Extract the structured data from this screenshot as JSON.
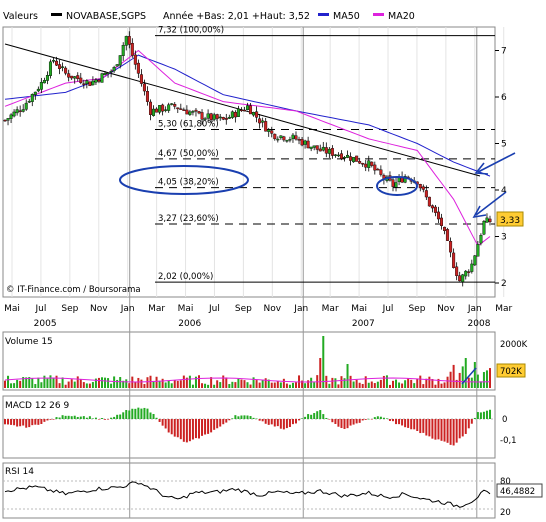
{
  "header": {
    "prefix": "Valeurs",
    "symbol": "NOVABASE,SGPS",
    "range_text": "Année +Bas: 2,01 +Haut: 3,52",
    "ma50_label": "MA50",
    "ma20_label": "MA20"
  },
  "colors": {
    "up": "#22aa22",
    "down": "#cc2222",
    "ma50": "#2222cc",
    "ma20": "#dd22dd",
    "annotation": "#1a3fb0",
    "price_badge": "#ffcc33",
    "volume_badge": "#ffcc33",
    "rsi_badge": "#ffffff"
  },
  "watermark": "© IT-Finance.com / Boursorama",
  "fib_levels": [
    {
      "value": 7.32,
      "label": "7,32 (100,00%)"
    },
    {
      "value": 5.3,
      "label": "5,30 (61,80%)"
    },
    {
      "value": 4.67,
      "label": "4,67 (50,00%)"
    },
    {
      "value": 4.05,
      "label": "4,05 (38,20%)"
    },
    {
      "value": 3.27,
      "label": "3,27 (23,60%)"
    },
    {
      "value": 2.02,
      "label": "2,02 (0,00%)"
    }
  ],
  "x_axis": {
    "months": [
      "Mai",
      "Jul",
      "Sep",
      "Nov",
      "Jan",
      "Mar",
      "Mai",
      "Jul",
      "Sep",
      "Nov",
      "Jan",
      "Mar",
      "Mai",
      "Jul",
      "Sep",
      "Nov",
      "Jan",
      "Mar"
    ],
    "years": [
      "2005",
      "2006",
      "2007",
      "2008"
    ]
  },
  "chart_data": [
    {
      "type": "candlestick",
      "title": "NOVABASE,SGPS",
      "y_ticks": [
        "7",
        "6",
        "5",
        "4",
        "3",
        "2"
      ],
      "ylim": [
        2,
        7.6
      ],
      "last_value": "3,33",
      "series": [
        {
          "name": "MA50",
          "approx_path": [
            [
              0,
              5.95
            ],
            [
              20,
              6.1
            ],
            [
              32,
              6.4
            ],
            [
              44,
              6.9
            ],
            [
              56,
              6.6
            ],
            [
              72,
              6.05
            ],
            [
              96,
              5.7
            ],
            [
              120,
              5.4
            ],
            [
              136,
              5.0
            ],
            [
              148,
              4.6
            ],
            [
              160,
              4.3
            ]
          ]
        },
        {
          "name": "MA20",
          "approx_path": [
            [
              0,
              5.8
            ],
            [
              20,
              6.3
            ],
            [
              32,
              6.4
            ],
            [
              44,
              7.0
            ],
            [
              56,
              6.3
            ],
            [
              72,
              5.9
            ],
            [
              96,
              5.7
            ],
            [
              120,
              5.1
            ],
            [
              136,
              4.85
            ],
            [
              148,
              3.8
            ],
            [
              156,
              2.8
            ],
            [
              160,
              3.0
            ]
          ]
        }
      ],
      "close_profile": [
        [
          0,
          5.5
        ],
        [
          6,
          5.8
        ],
        [
          12,
          6.3
        ],
        [
          16,
          6.8
        ],
        [
          20,
          6.5
        ],
        [
          28,
          6.3
        ],
        [
          36,
          6.6
        ],
        [
          40,
          7.3
        ],
        [
          44,
          6.5
        ],
        [
          48,
          5.7
        ],
        [
          56,
          5.8
        ],
        [
          64,
          5.6
        ],
        [
          72,
          5.5
        ],
        [
          80,
          5.8
        ],
        [
          88,
          5.2
        ],
        [
          96,
          5.1
        ],
        [
          104,
          4.85
        ],
        [
          112,
          4.75
        ],
        [
          120,
          4.55
        ],
        [
          124,
          4.3
        ],
        [
          128,
          4.1
        ],
        [
          132,
          4.3
        ],
        [
          136,
          4.2
        ],
        [
          140,
          3.7
        ],
        [
          144,
          3.25
        ],
        [
          148,
          2.4
        ],
        [
          150,
          2.05
        ],
        [
          154,
          2.4
        ],
        [
          158,
          3.3
        ],
        [
          160,
          3.33
        ]
      ]
    },
    {
      "type": "bar",
      "title": "Volume 15",
      "y_ticks": [
        "2000K"
      ],
      "last_value": "702K"
    },
    {
      "type": "bar",
      "title": "MACD 12 26 9",
      "y_ticks": [
        "0",
        "-0,1"
      ]
    },
    {
      "type": "line",
      "title": "RSI 14",
      "y_ticks": [
        "80",
        "20"
      ],
      "ylim": [
        0,
        100
      ],
      "last_value": "46,4882"
    }
  ]
}
